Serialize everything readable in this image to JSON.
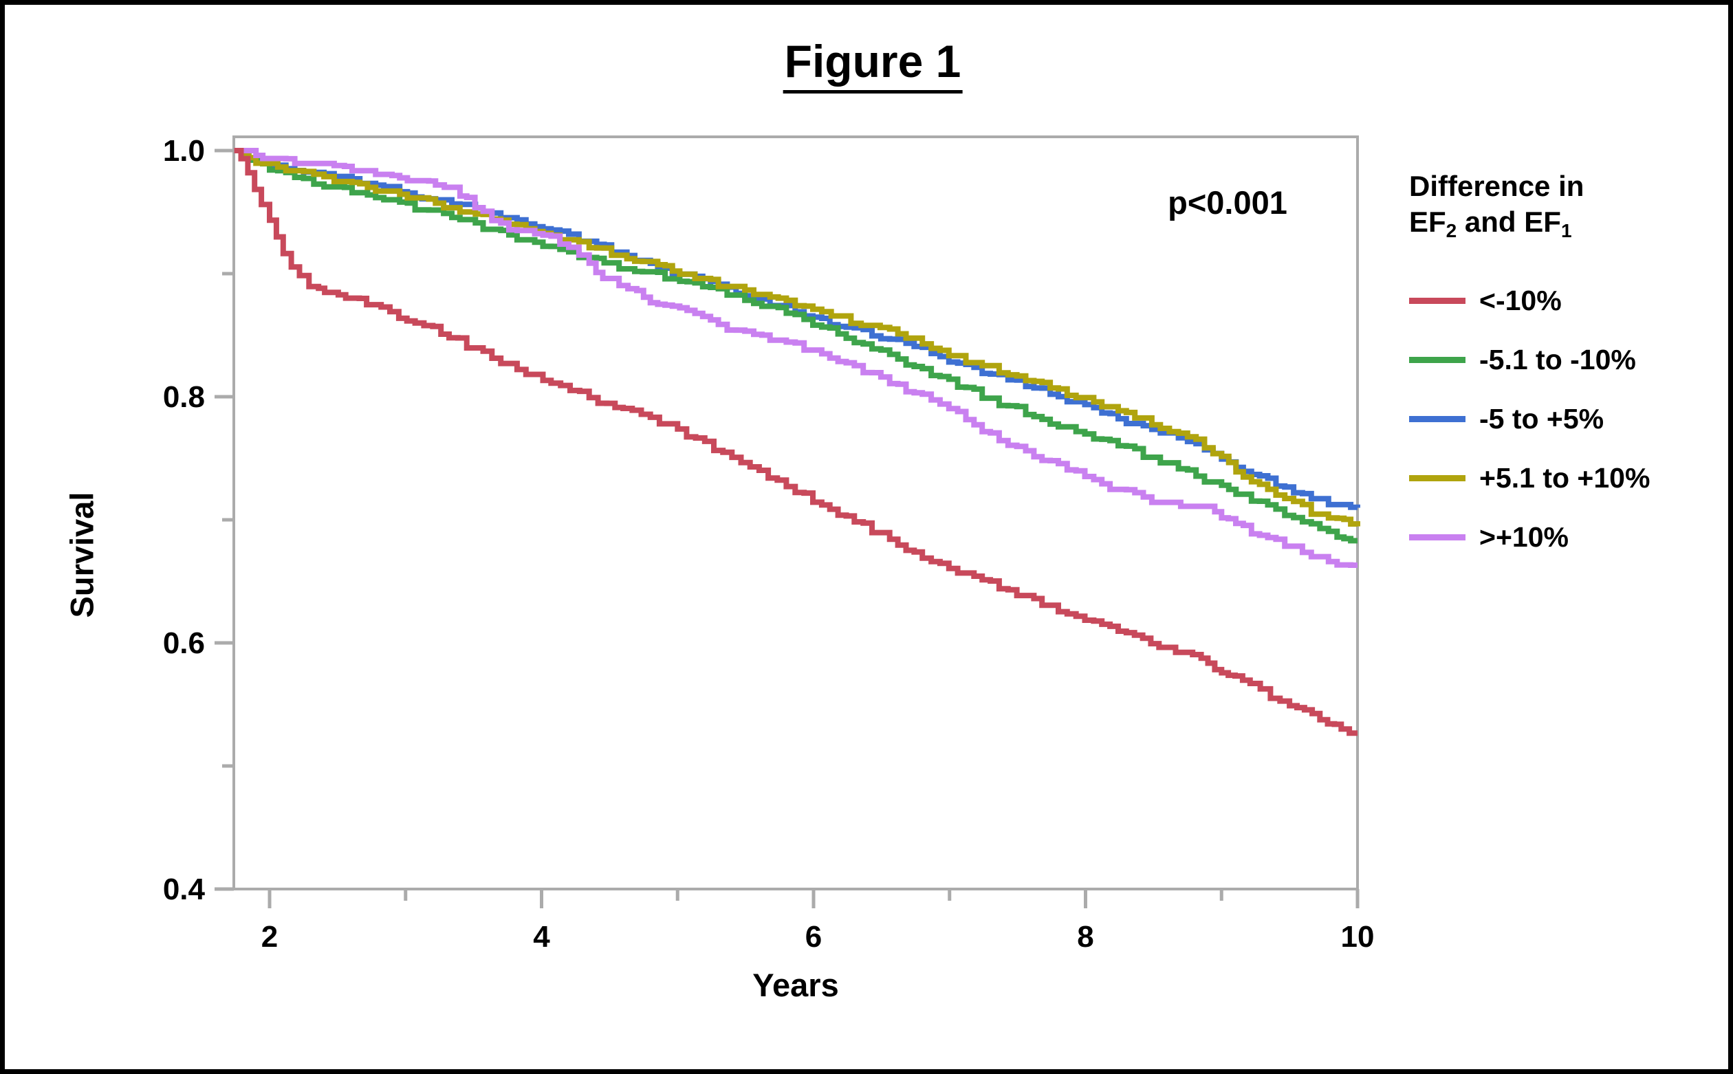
{
  "figure": {
    "title": "Figure 1",
    "p_value": "p<0.001",
    "background": "#ffffff",
    "border_color": "#000000",
    "axis_color": "#ababab",
    "text_color": "#000000"
  },
  "axes": {
    "x": {
      "label": "Years",
      "major_ticks": [
        {
          "value": 2,
          "label": "2"
        },
        {
          "value": 4,
          "label": "4"
        },
        {
          "value": 6,
          "label": "6"
        },
        {
          "value": 8,
          "label": "8"
        },
        {
          "value": 10,
          "label": "10"
        }
      ],
      "minor_ticks": [
        3,
        5,
        7,
        9
      ],
      "range": [
        1.737,
        10
      ]
    },
    "y": {
      "label": "Survival",
      "major_ticks": [
        {
          "value": 1.0,
          "label": "1.0"
        },
        {
          "value": 0.8,
          "label": "0.8"
        },
        {
          "value": 0.6,
          "label": "0.6"
        },
        {
          "value": 0.4,
          "label": "0.4"
        }
      ],
      "minor_ticks": [
        0.9,
        0.7,
        0.5
      ],
      "range": [
        0.4,
        1.0
      ]
    }
  },
  "legend": {
    "title_line1": "Difference in",
    "title_line2_parts": [
      {
        "text": "EF",
        "sub": "2"
      },
      {
        "text": " and EF",
        "sub": "1"
      }
    ],
    "items": [
      {
        "label": "<-10%",
        "color": "#c8495b"
      },
      {
        "label": "-5.1 to -10%",
        "color": "#3ea44b"
      },
      {
        "label": "-5 to +5%",
        "color": "#3e70d2"
      },
      {
        "label": "+5.1 to +10%",
        "color": "#b0a40e"
      },
      {
        "label": ">+10%",
        "color": "#c980f0"
      }
    ]
  },
  "chart_data": {
    "type": "line",
    "subtype": "kaplan-meier-step",
    "title": "Figure 1",
    "xlabel": "Years",
    "ylabel": "Survival",
    "xlim": [
      1.737,
      10
    ],
    "ylim": [
      0.4,
      1.0
    ],
    "x_ticks": [
      2,
      4,
      6,
      8,
      10
    ],
    "y_ticks": [
      1.0,
      0.8,
      0.6,
      0.4
    ],
    "grid": false,
    "legend_position": "right-outside",
    "legend_title": "Difference in EF2 and EF1",
    "annotation": "p<0.001",
    "series": [
      {
        "name": "-5 to +5%",
        "color": "#3e70d2",
        "points": [
          [
            1.74,
            1.0
          ],
          [
            1.9,
            0.993
          ],
          [
            2.0,
            0.99
          ],
          [
            2.12,
            0.987
          ],
          [
            2.25,
            0.984
          ],
          [
            2.4,
            0.981
          ],
          [
            2.55,
            0.978
          ],
          [
            2.72,
            0.974
          ],
          [
            2.9,
            0.969
          ],
          [
            3.07,
            0.964
          ],
          [
            3.22,
            0.961
          ],
          [
            3.4,
            0.956
          ],
          [
            3.57,
            0.951
          ],
          [
            3.7,
            0.947
          ],
          [
            3.82,
            0.943
          ],
          [
            3.95,
            0.939
          ],
          [
            4.07,
            0.935
          ],
          [
            4.2,
            0.931
          ],
          [
            4.35,
            0.926
          ],
          [
            4.57,
            0.916
          ],
          [
            4.8,
            0.908
          ],
          [
            5.07,
            0.899
          ],
          [
            5.3,
            0.89
          ],
          [
            5.56,
            0.881
          ],
          [
            5.8,
            0.872
          ],
          [
            6.06,
            0.863
          ],
          [
            6.3,
            0.855
          ],
          [
            6.56,
            0.847
          ],
          [
            6.8,
            0.838
          ],
          [
            7.06,
            0.827
          ],
          [
            7.3,
            0.818
          ],
          [
            7.56,
            0.81
          ],
          [
            7.8,
            0.8
          ],
          [
            8.06,
            0.79
          ],
          [
            8.3,
            0.78
          ],
          [
            8.55,
            0.772
          ],
          [
            8.75,
            0.764
          ],
          [
            9.0,
            0.749
          ],
          [
            9.16,
            0.74
          ],
          [
            9.4,
            0.729
          ],
          [
            9.66,
            0.718
          ],
          [
            9.85,
            0.712
          ],
          [
            10.0,
            0.71
          ]
        ]
      },
      {
        "name": "-5.1 to -10%",
        "color": "#3ea44b",
        "points": [
          [
            1.74,
            1.0
          ],
          [
            1.9,
            0.991
          ],
          [
            2.0,
            0.986
          ],
          [
            2.12,
            0.981
          ],
          [
            2.25,
            0.977
          ],
          [
            2.4,
            0.973
          ],
          [
            2.55,
            0.969
          ],
          [
            2.72,
            0.965
          ],
          [
            2.9,
            0.959
          ],
          [
            3.07,
            0.954
          ],
          [
            3.22,
            0.95
          ],
          [
            3.4,
            0.945
          ],
          [
            3.57,
            0.938
          ],
          [
            3.7,
            0.933
          ],
          [
            3.82,
            0.929
          ],
          [
            3.95,
            0.925
          ],
          [
            4.07,
            0.922
          ],
          [
            4.2,
            0.918
          ],
          [
            4.35,
            0.913
          ],
          [
            4.57,
            0.906
          ],
          [
            4.8,
            0.9
          ],
          [
            5.07,
            0.894
          ],
          [
            5.3,
            0.886
          ],
          [
            5.56,
            0.878
          ],
          [
            5.8,
            0.868
          ],
          [
            6.06,
            0.857
          ],
          [
            6.3,
            0.846
          ],
          [
            6.56,
            0.834
          ],
          [
            6.8,
            0.822
          ],
          [
            7.06,
            0.81
          ],
          [
            7.3,
            0.798
          ],
          [
            7.56,
            0.787
          ],
          [
            7.8,
            0.777
          ],
          [
            8.06,
            0.768
          ],
          [
            8.3,
            0.758
          ],
          [
            8.55,
            0.748
          ],
          [
            8.75,
            0.738
          ],
          [
            9.0,
            0.727
          ],
          [
            9.16,
            0.719
          ],
          [
            9.4,
            0.708
          ],
          [
            9.66,
            0.696
          ],
          [
            9.85,
            0.688
          ],
          [
            10.0,
            0.684
          ]
        ]
      },
      {
        "name": "+5.1 to +10%",
        "color": "#b0a40e",
        "points": [
          [
            1.74,
            1.0
          ],
          [
            1.9,
            0.992
          ],
          [
            2.0,
            0.988
          ],
          [
            2.12,
            0.985
          ],
          [
            2.25,
            0.982
          ],
          [
            2.4,
            0.979
          ],
          [
            2.55,
            0.975
          ],
          [
            2.72,
            0.971
          ],
          [
            2.9,
            0.966
          ],
          [
            3.07,
            0.961
          ],
          [
            3.22,
            0.957
          ],
          [
            3.4,
            0.952
          ],
          [
            3.57,
            0.947
          ],
          [
            3.7,
            0.943
          ],
          [
            3.82,
            0.939
          ],
          [
            3.95,
            0.935
          ],
          [
            4.07,
            0.931
          ],
          [
            4.2,
            0.927
          ],
          [
            4.35,
            0.922
          ],
          [
            4.57,
            0.915
          ],
          [
            4.8,
            0.908
          ],
          [
            5.07,
            0.9
          ],
          [
            5.3,
            0.892
          ],
          [
            5.56,
            0.885
          ],
          [
            5.8,
            0.878
          ],
          [
            6.06,
            0.87
          ],
          [
            6.2,
            0.864
          ],
          [
            6.35,
            0.86
          ],
          [
            6.56,
            0.854
          ],
          [
            6.8,
            0.843
          ],
          [
            7.06,
            0.832
          ],
          [
            7.3,
            0.823
          ],
          [
            7.56,
            0.815
          ],
          [
            7.8,
            0.806
          ],
          [
            8.06,
            0.796
          ],
          [
            8.3,
            0.786
          ],
          [
            8.55,
            0.776
          ],
          [
            8.75,
            0.768
          ],
          [
            9.0,
            0.75
          ],
          [
            9.16,
            0.733
          ],
          [
            9.4,
            0.722
          ],
          [
            9.66,
            0.707
          ],
          [
            9.85,
            0.7
          ],
          [
            10.0,
            0.697
          ]
        ]
      },
      {
        "name": ">+10%",
        "color": "#c980f0",
        "points": [
          [
            1.74,
            1.0
          ],
          [
            1.9,
            0.997
          ],
          [
            2.0,
            0.995
          ],
          [
            2.12,
            0.993
          ],
          [
            2.25,
            0.991
          ],
          [
            2.4,
            0.989
          ],
          [
            2.55,
            0.987
          ],
          [
            2.72,
            0.984
          ],
          [
            2.9,
            0.98
          ],
          [
            3.07,
            0.976
          ],
          [
            3.22,
            0.973
          ],
          [
            3.35,
            0.968
          ],
          [
            3.45,
            0.96
          ],
          [
            3.57,
            0.949
          ],
          [
            3.7,
            0.941
          ],
          [
            3.82,
            0.935
          ],
          [
            3.95,
            0.931
          ],
          [
            4.07,
            0.929
          ],
          [
            4.2,
            0.923
          ],
          [
            4.35,
            0.909
          ],
          [
            4.45,
            0.898
          ],
          [
            4.57,
            0.891
          ],
          [
            4.7,
            0.884
          ],
          [
            4.8,
            0.878
          ],
          [
            5.07,
            0.868
          ],
          [
            5.3,
            0.858
          ],
          [
            5.56,
            0.85
          ],
          [
            5.8,
            0.843
          ],
          [
            6.06,
            0.836
          ],
          [
            6.3,
            0.824
          ],
          [
            6.56,
            0.813
          ],
          [
            6.8,
            0.8
          ],
          [
            7.06,
            0.786
          ],
          [
            7.3,
            0.77
          ],
          [
            7.56,
            0.756
          ],
          [
            7.8,
            0.744
          ],
          [
            8.06,
            0.732
          ],
          [
            8.3,
            0.722
          ],
          [
            8.55,
            0.714
          ],
          [
            8.7,
            0.712
          ],
          [
            8.9,
            0.71
          ],
          [
            9.05,
            0.7
          ],
          [
            9.16,
            0.693
          ],
          [
            9.4,
            0.682
          ],
          [
            9.66,
            0.672
          ],
          [
            9.85,
            0.665
          ],
          [
            10.0,
            0.661
          ]
        ]
      },
      {
        "name": "<-10%",
        "color": "#c8495b",
        "points": [
          [
            1.74,
            1.0
          ],
          [
            1.79,
            0.991
          ],
          [
            1.84,
            0.98
          ],
          [
            1.89,
            0.967
          ],
          [
            1.94,
            0.955
          ],
          [
            2.0,
            0.941
          ],
          [
            2.05,
            0.928
          ],
          [
            2.1,
            0.916
          ],
          [
            2.16,
            0.906
          ],
          [
            2.22,
            0.897
          ],
          [
            2.29,
            0.891
          ],
          [
            2.36,
            0.888
          ],
          [
            2.45,
            0.885
          ],
          [
            2.56,
            0.882
          ],
          [
            2.66,
            0.878
          ],
          [
            2.82,
            0.871
          ],
          [
            2.95,
            0.866
          ],
          [
            3.07,
            0.861
          ],
          [
            3.2,
            0.855
          ],
          [
            3.32,
            0.849
          ],
          [
            3.45,
            0.842
          ],
          [
            3.57,
            0.836
          ],
          [
            3.7,
            0.829
          ],
          [
            3.82,
            0.823
          ],
          [
            3.95,
            0.817
          ],
          [
            4.07,
            0.812
          ],
          [
            4.21,
            0.805
          ],
          [
            4.35,
            0.799
          ],
          [
            4.48,
            0.795
          ],
          [
            4.6,
            0.791
          ],
          [
            4.8,
            0.783
          ],
          [
            5.0,
            0.773
          ],
          [
            5.2,
            0.762
          ],
          [
            5.4,
            0.752
          ],
          [
            5.6,
            0.741
          ],
          [
            5.8,
            0.727
          ],
          [
            6.06,
            0.712
          ],
          [
            6.3,
            0.699
          ],
          [
            6.56,
            0.684
          ],
          [
            6.8,
            0.671
          ],
          [
            7.06,
            0.659
          ],
          [
            7.3,
            0.648
          ],
          [
            7.56,
            0.637
          ],
          [
            7.8,
            0.627
          ],
          [
            8.06,
            0.616
          ],
          [
            8.3,
            0.606
          ],
          [
            8.6,
            0.596
          ],
          [
            8.85,
            0.586
          ],
          [
            9.0,
            0.578
          ],
          [
            9.1,
            0.571
          ],
          [
            9.21,
            0.565
          ],
          [
            9.36,
            0.556
          ],
          [
            9.5,
            0.55
          ],
          [
            9.61,
            0.545
          ],
          [
            9.78,
            0.536
          ],
          [
            9.88,
            0.53
          ],
          [
            10.0,
            0.528
          ]
        ]
      }
    ]
  }
}
